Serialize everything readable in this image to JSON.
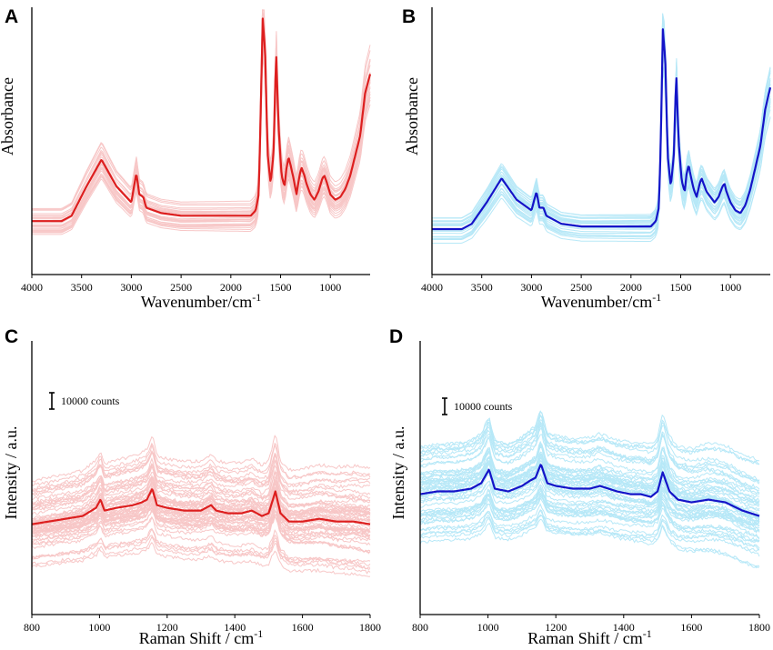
{
  "chart_data": [
    {
      "panel": "A",
      "type": "line",
      "xlabel": "Wavenumber/cm",
      "xlabel_sup": "-1",
      "ylabel": "Absorbance",
      "xlim": [
        4000,
        600
      ],
      "x_reversed": true,
      "x_ticks": [
        "4000",
        "3500",
        "3000",
        "2500",
        "2000",
        "1500",
        "1000"
      ],
      "y_ticks_shown": false,
      "colors": {
        "mean": "#dd1f1f",
        "spectra": "#f29a9a"
      },
      "series": [
        {
          "role": "mean",
          "x": [
            4000,
            3700,
            3600,
            3450,
            3300,
            3150,
            3000,
            2950,
            2920,
            2880,
            2850,
            2700,
            2500,
            2000,
            1800,
            1750,
            1720,
            1700,
            1680,
            1655,
            1630,
            1600,
            1570,
            1545,
            1520,
            1490,
            1460,
            1440,
            1420,
            1400,
            1370,
            1340,
            1310,
            1290,
            1260,
            1240,
            1200,
            1160,
            1120,
            1080,
            1060,
            1040,
            1000,
            950,
            900,
            850,
            800,
            700,
            650,
            600
          ],
          "y": [
            0.2,
            0.2,
            0.22,
            0.33,
            0.43,
            0.33,
            0.27,
            0.38,
            0.3,
            0.29,
            0.25,
            0.23,
            0.22,
            0.22,
            0.22,
            0.24,
            0.3,
            0.6,
            0.96,
            0.83,
            0.45,
            0.34,
            0.46,
            0.83,
            0.55,
            0.37,
            0.33,
            0.4,
            0.44,
            0.41,
            0.36,
            0.3,
            0.37,
            0.4,
            0.37,
            0.34,
            0.3,
            0.28,
            0.31,
            0.36,
            0.37,
            0.35,
            0.3,
            0.28,
            0.29,
            0.32,
            0.37,
            0.52,
            0.68,
            0.75
          ]
        }
      ]
    },
    {
      "panel": "B",
      "type": "line",
      "xlabel": "Wavenumber/cm",
      "xlabel_sup": "-1",
      "ylabel": "Absorbance",
      "xlim": [
        4000,
        600
      ],
      "x_reversed": true,
      "x_ticks": [
        "4000",
        "3500",
        "3000",
        "2500",
        "2000",
        "1500",
        "1000"
      ],
      "y_ticks_shown": false,
      "colors": {
        "mean": "#1414c8",
        "spectra": "#7dd6f2"
      },
      "series": [
        {
          "role": "mean",
          "x": [
            4000,
            3700,
            3600,
            3450,
            3300,
            3150,
            3000,
            2950,
            2920,
            2880,
            2850,
            2700,
            2500,
            2000,
            1800,
            1750,
            1720,
            1700,
            1680,
            1655,
            1630,
            1600,
            1570,
            1545,
            1520,
            1490,
            1460,
            1440,
            1420,
            1400,
            1370,
            1340,
            1310,
            1290,
            1260,
            1240,
            1200,
            1160,
            1120,
            1080,
            1060,
            1040,
            1000,
            950,
            900,
            850,
            800,
            700,
            650,
            600
          ],
          "y": [
            0.17,
            0.17,
            0.19,
            0.27,
            0.36,
            0.28,
            0.24,
            0.31,
            0.25,
            0.25,
            0.22,
            0.19,
            0.18,
            0.18,
            0.18,
            0.2,
            0.25,
            0.5,
            0.92,
            0.8,
            0.44,
            0.33,
            0.44,
            0.75,
            0.49,
            0.35,
            0.31,
            0.38,
            0.41,
            0.37,
            0.32,
            0.29,
            0.34,
            0.36,
            0.33,
            0.31,
            0.29,
            0.27,
            0.29,
            0.33,
            0.34,
            0.31,
            0.27,
            0.24,
            0.23,
            0.26,
            0.32,
            0.48,
            0.62,
            0.7
          ]
        }
      ]
    },
    {
      "panel": "C",
      "type": "line",
      "xlabel": "Raman Shift / cm",
      "xlabel_sup": "-1",
      "ylabel": "Intensity / a.u.",
      "xlim": [
        800,
        1800
      ],
      "x_reversed": false,
      "x_ticks": [
        "800",
        "1000",
        "1200",
        "1400",
        "1600",
        "1800"
      ],
      "y_ticks_shown": false,
      "scale_bar": "10000 counts",
      "colors": {
        "mean": "#dd1f1f",
        "spectra": "#f29a9a"
      },
      "series": [
        {
          "role": "mean",
          "x": [
            800,
            850,
            900,
            950,
            990,
            1003,
            1015,
            1050,
            1100,
            1125,
            1140,
            1156,
            1170,
            1200,
            1250,
            1300,
            1330,
            1345,
            1380,
            1420,
            1450,
            1480,
            1500,
            1520,
            1535,
            1560,
            1600,
            1650,
            1700,
            1750,
            1800
          ],
          "y": [
            0.33,
            0.34,
            0.35,
            0.36,
            0.39,
            0.42,
            0.38,
            0.39,
            0.4,
            0.41,
            0.42,
            0.46,
            0.4,
            0.39,
            0.38,
            0.38,
            0.4,
            0.38,
            0.37,
            0.37,
            0.38,
            0.36,
            0.37,
            0.45,
            0.37,
            0.34,
            0.34,
            0.35,
            0.34,
            0.34,
            0.33
          ]
        }
      ]
    },
    {
      "panel": "D",
      "type": "line",
      "xlabel": "Raman Shift / cm",
      "xlabel_sup": "-1",
      "ylabel": "Intensity / a.u.",
      "xlim": [
        800,
        1800
      ],
      "x_reversed": false,
      "x_ticks": [
        "800",
        "1000",
        "1200",
        "1400",
        "1600",
        "1800"
      ],
      "y_ticks_shown": false,
      "scale_bar": "10000 counts",
      "colors": {
        "mean": "#1414c8",
        "spectra": "#7dd6f2"
      },
      "series": [
        {
          "role": "mean",
          "x": [
            800,
            850,
            900,
            950,
            980,
            1003,
            1020,
            1060,
            1100,
            1125,
            1140,
            1156,
            1175,
            1200,
            1250,
            1300,
            1330,
            1380,
            1420,
            1450,
            1480,
            1500,
            1515,
            1535,
            1560,
            1600,
            1650,
            1700,
            1750,
            1800
          ],
          "y": [
            0.44,
            0.45,
            0.45,
            0.46,
            0.48,
            0.53,
            0.46,
            0.45,
            0.47,
            0.49,
            0.5,
            0.55,
            0.48,
            0.47,
            0.46,
            0.46,
            0.47,
            0.45,
            0.44,
            0.44,
            0.43,
            0.45,
            0.52,
            0.45,
            0.42,
            0.41,
            0.42,
            0.41,
            0.38,
            0.36
          ]
        }
      ]
    }
  ]
}
